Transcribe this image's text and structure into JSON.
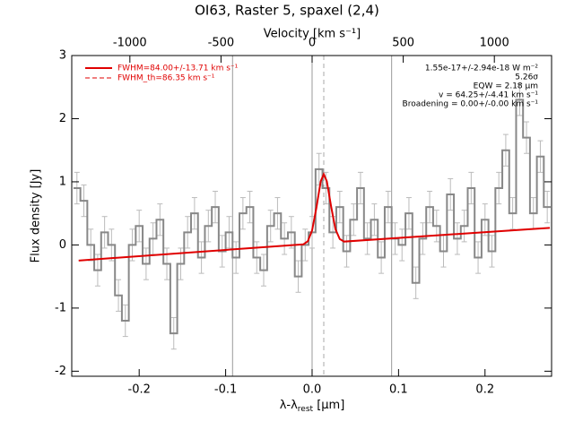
{
  "chart_data": {
    "type": "spectrum",
    "title": "OI63, Raster 5, spaxel (2,4)",
    "x2_label": "Velocity [km s⁻¹]",
    "ylabel": "Flux density [Jy]",
    "xlabel": "λ-λ",
    "xlabel_sub": "rest",
    "xlabel_unit": " [µm]",
    "xlim": [
      -0.278,
      0.277
    ],
    "ylim": [
      -2.08,
      3
    ],
    "x2lim": [
      -1319,
      1314
    ],
    "xticks": [
      -0.2,
      -0.1,
      {
        "value": 0,
        "label": "0.0"
      },
      0.1,
      0.2
    ],
    "yticks": [
      -2,
      -1,
      0,
      1,
      2,
      3
    ],
    "x2ticks": [
      -1000,
      -500,
      0,
      500,
      1000
    ],
    "x": [
      -0.272,
      -0.264,
      -0.256,
      -0.248,
      -0.24,
      -0.232,
      -0.224,
      -0.216,
      -0.208,
      -0.2,
      -0.192,
      -0.184,
      -0.176,
      -0.168,
      -0.16,
      -0.152,
      -0.144,
      -0.136,
      -0.128,
      -0.12,
      -0.112,
      -0.104,
      -0.096,
      -0.088,
      -0.08,
      -0.072,
      -0.064,
      -0.056,
      -0.048,
      -0.04,
      -0.032,
      -0.024,
      -0.016,
      -0.008,
      0,
      0.008,
      0.016,
      0.024,
      0.032,
      0.04,
      0.048,
      0.056,
      0.064,
      0.072,
      0.08,
      0.088,
      0.096,
      0.104,
      0.112,
      0.12,
      0.128,
      0.136,
      0.144,
      0.152,
      0.16,
      0.168,
      0.176,
      0.184,
      0.192,
      0.2,
      0.208,
      0.216,
      0.224,
      0.232,
      0.24,
      0.248,
      0.256,
      0.264,
      0.272
    ],
    "values": [
      0.9,
      0.7,
      0.0,
      -0.4,
      0.2,
      0.0,
      -0.8,
      -1.2,
      0.0,
      0.3,
      -0.3,
      0.1,
      0.4,
      -0.3,
      -1.4,
      -0.3,
      0.2,
      0.5,
      -0.2,
      0.3,
      0.6,
      -0.1,
      0.2,
      -0.2,
      0.5,
      0.6,
      -0.2,
      -0.4,
      0.3,
      0.5,
      0.1,
      0.2,
      -0.5,
      0.0,
      0.2,
      1.2,
      0.9,
      0.2,
      0.6,
      -0.1,
      0.4,
      0.9,
      0.1,
      0.4,
      -0.2,
      0.6,
      0.1,
      0.0,
      0.5,
      -0.6,
      0.1,
      0.6,
      0.3,
      -0.1,
      0.8,
      0.1,
      0.3,
      0.9,
      -0.2,
      0.4,
      -0.1,
      0.9,
      1.5,
      0.5,
      2.3,
      1.7,
      0.5,
      1.4,
      0.6
    ],
    "error": 0.25,
    "color": "#888888",
    "fit": {
      "color": "#e00000",
      "x": [
        -0.27,
        -0.01,
        -0.005,
        0,
        0.005,
        0.01,
        0.0135,
        0.017,
        0.022,
        0.027,
        0.032,
        0.037,
        0.275
      ],
      "values": [
        -0.247,
        0.01,
        0.058,
        0.23,
        0.59,
        1.01,
        1.12,
        1.01,
        0.61,
        0.25,
        0.093,
        0.053,
        0.271
      ]
    },
    "vlines": [
      -0.092,
      0,
      0.092
    ],
    "dashed_vline": 0.0135,
    "legend": [
      {
        "name": "FWHM=84.00+/-13.71 km s⁻¹",
        "dash": false
      },
      {
        "name": "FWHM_th=86.35 km s⁻¹",
        "dash": true
      }
    ],
    "annotations": [
      "1.55e-17+/-2.94e-18 W m⁻²",
      "5.26σ",
      "EQW = 2.18 µm",
      "v = 64.25+/-4.41 km s⁻¹",
      "Broadening = 0.00+/-0.00 km s⁻¹"
    ]
  }
}
